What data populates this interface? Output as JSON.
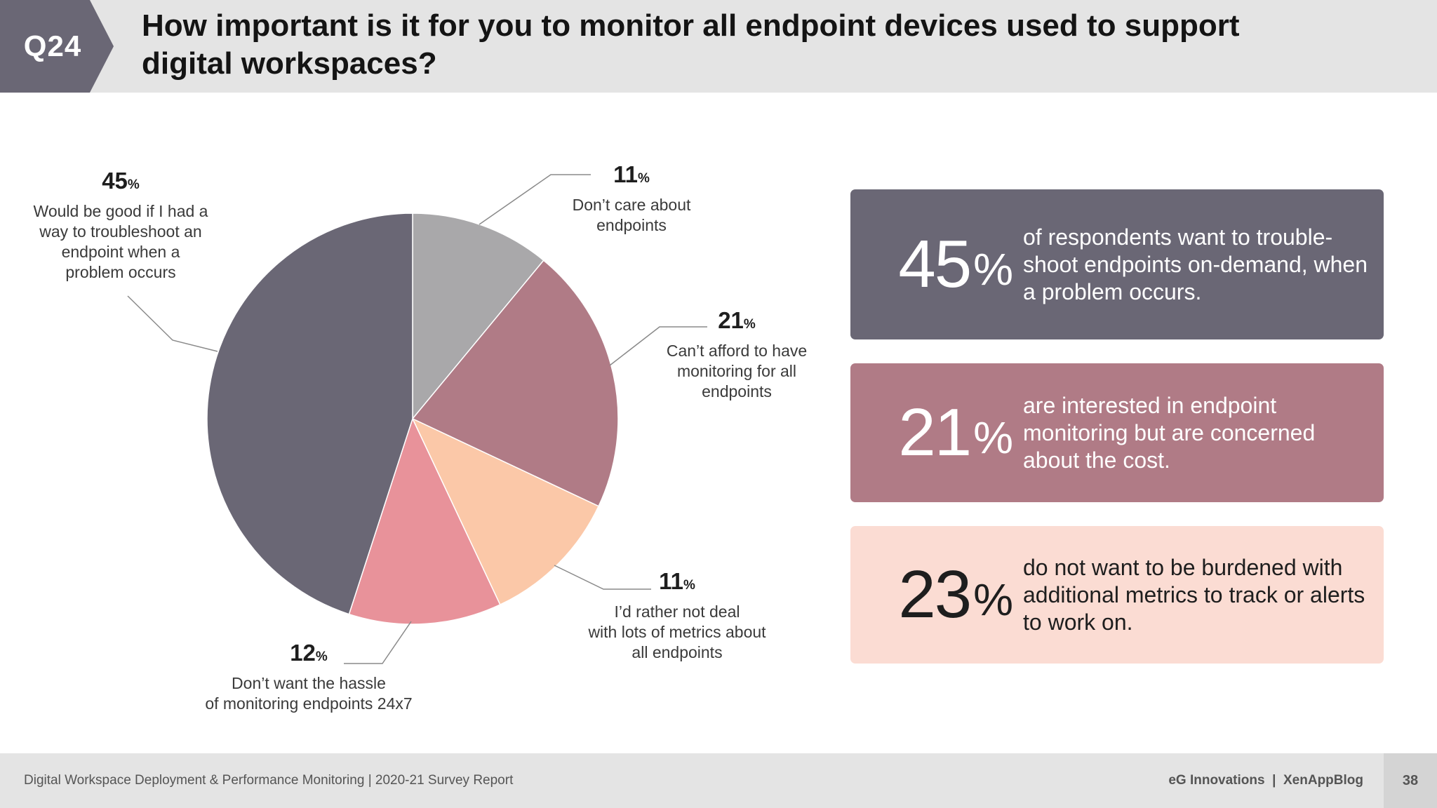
{
  "header": {
    "question_badge": "Q24",
    "title": "How important is it for you to monitor all endpoint devices used to support digital workspaces?"
  },
  "colors": {
    "header_bg": "#e4e4e4",
    "badge": "#6a6775",
    "card_1": "#6a6775",
    "card_2": "#b07b86",
    "card_3": "#fbdcd3"
  },
  "chart_data": {
    "type": "pie",
    "title": "How important is it for you to monitor all endpoint devices used to support digital workspaces?",
    "unit": "%",
    "slices": [
      {
        "value": 11,
        "label_lines": [
          "Don’t care about",
          "endpoints"
        ],
        "color": "#a9a8aa"
      },
      {
        "value": 21,
        "label_lines": [
          "Can’t afford to have",
          "monitoring for all",
          "endpoints"
        ],
        "color": "#b07b86"
      },
      {
        "value": 11,
        "label_lines": [
          "I’d rather not deal",
          "with lots of metrics about",
          "all endpoints"
        ],
        "color": "#fbc8a8"
      },
      {
        "value": 12,
        "label_lines": [
          "Don’t want the hassle",
          "of monitoring endpoints 24x7"
        ],
        "color": "#e8929a"
      },
      {
        "value": 45,
        "label_lines": [
          "Would be good if I had a",
          "way to troubleshoot an",
          "endpoint when a",
          "problem occurs"
        ],
        "color": "#6a6775"
      }
    ]
  },
  "highlights": [
    {
      "value": "45",
      "unit": "%",
      "text": "of respondents want to trouble-shoot endpoints on-demand, when a problem occurs."
    },
    {
      "value": "21",
      "unit": "%",
      "text": "are interested in endpoint monitoring but are concerned about the cost."
    },
    {
      "value": "23",
      "unit": "%",
      "text": "do not want to be burdened with additional metrics to track or alerts to work on."
    }
  ],
  "footer": {
    "report_title": "Digital Workspace Deployment & Performance Monitoring | 2020-21 Survey Report",
    "credits": "eG Innovations  |  XenAppBlog",
    "page_number": "38"
  }
}
